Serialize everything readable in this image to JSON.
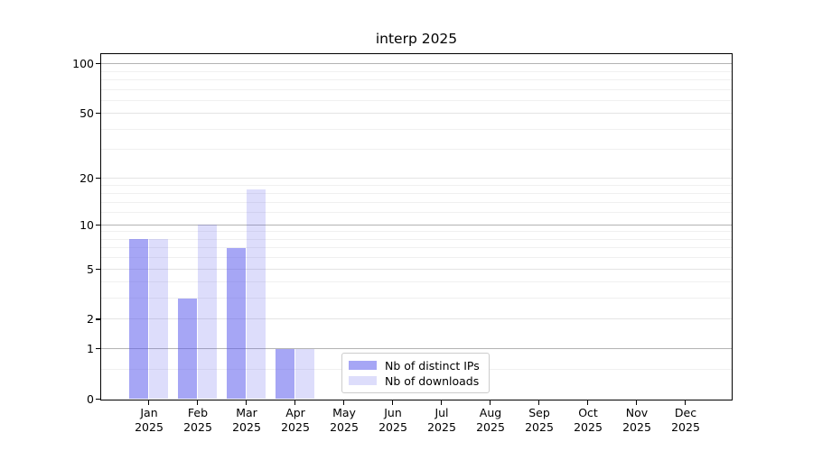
{
  "chart_data": {
    "type": "bar",
    "title": "interp 2025",
    "year_label": "2025",
    "categories": [
      "Jan",
      "Feb",
      "Mar",
      "Apr",
      "May",
      "Jun",
      "Jul",
      "Aug",
      "Sep",
      "Oct",
      "Nov",
      "Dec"
    ],
    "series": [
      {
        "name": "Nb of distinct IPs",
        "color": "#a6a6f4",
        "fill": "rgba(85,85,235,0.52)",
        "values": [
          8,
          3,
          7,
          1,
          0,
          0,
          0,
          0,
          0,
          0,
          0,
          0
        ]
      },
      {
        "name": "Nb of downloads",
        "color": "#ddddfb",
        "fill": "rgba(85,85,235,0.20)",
        "values": [
          8,
          10,
          17,
          1,
          0,
          0,
          0,
          0,
          0,
          0,
          0,
          0
        ]
      }
    ],
    "yscale": "log1p",
    "ylim": [
      0,
      115
    ],
    "yticks": [
      0,
      1,
      2,
      5,
      10,
      20,
      50,
      100
    ],
    "yticks_minor": [
      0.5,
      3,
      4,
      6,
      7,
      8,
      9,
      12,
      14,
      16,
      18,
      30,
      40,
      60,
      70,
      80,
      90
    ],
    "grid": true,
    "legend_position": "lower center",
    "colors": {
      "grid_major": "#b3b3b3",
      "grid_mid": "#e4e4e4",
      "grid_minor": "#f0f0f0",
      "spine": "#000000",
      "legend_border": "#cccccc"
    }
  }
}
